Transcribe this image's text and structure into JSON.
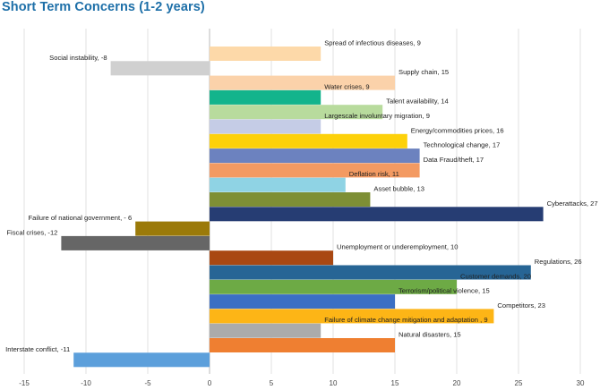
{
  "chart_data": {
    "type": "bar",
    "orientation": "horizontal",
    "title": "Short Term Concerns (1-2 years)",
    "xlim": [
      -15,
      30
    ],
    "xticks": [
      -15,
      -10,
      -5,
      0,
      5,
      10,
      15,
      20,
      25,
      30
    ],
    "grid": true,
    "bars": [
      {
        "label": "Spread of infectious diseases, 9",
        "value": 9,
        "color": "#fdd9a9"
      },
      {
        "label": "Social instability, -8",
        "value": -8,
        "color": "#d0d0d0"
      },
      {
        "label": "Supply chain, 15",
        "value": 15,
        "color": "#fbd2aa"
      },
      {
        "label": "Water crises, 9",
        "value": 9,
        "color": "#13b48c"
      },
      {
        "label": "Talent availability, 14",
        "value": 14,
        "color": "#b8db9d"
      },
      {
        "label": "Largescale involuntary migration, 9",
        "value": 9,
        "color": "#c5cce6"
      },
      {
        "label": "Energy/commodities prices, 16",
        "value": 16,
        "color": "#fdd10a"
      },
      {
        "label": "Technological change, 17",
        "value": 17,
        "color": "#6c82bf"
      },
      {
        "label": "Data Fraud/theft, 17",
        "value": 17,
        "color": "#f39a62"
      },
      {
        "label": "Deflation risk, 11",
        "value": 11,
        "color": "#8fd3e4"
      },
      {
        "label": "Asset bubble, 13",
        "value": 13,
        "color": "#7e8f35"
      },
      {
        "label": "Cyberattacks, 27",
        "value": 27,
        "color": "#263d73"
      },
      {
        "label": "Failure of national government, - 6",
        "value": -6,
        "color": "#9b7a09"
      },
      {
        "label": "Fiscal crises, -12",
        "value": -12,
        "color": "#666666"
      },
      {
        "label": "Unemployment or underemployment, 10",
        "value": 10,
        "color": "#a94812"
      },
      {
        "label": "Regulations, 26",
        "value": 26,
        "color": "#276595"
      },
      {
        "label": "Customer demands, 20",
        "value": 20,
        "color": "#6daa45"
      },
      {
        "label": "Terrorism/political violence, 15",
        "value": 15,
        "color": "#3b6fc4"
      },
      {
        "label": "Competitors, 23",
        "value": 23,
        "color": "#fdb516"
      },
      {
        "label": "Failure of climate change mitigation and adaptation , 9",
        "value": 9,
        "color": "#ababab"
      },
      {
        "label": "Natural disasters, 15",
        "value": 15,
        "color": "#ef7f31"
      },
      {
        "label": "Interstate conflict, -11",
        "value": -11,
        "color": "#5c9fdb"
      }
    ]
  }
}
